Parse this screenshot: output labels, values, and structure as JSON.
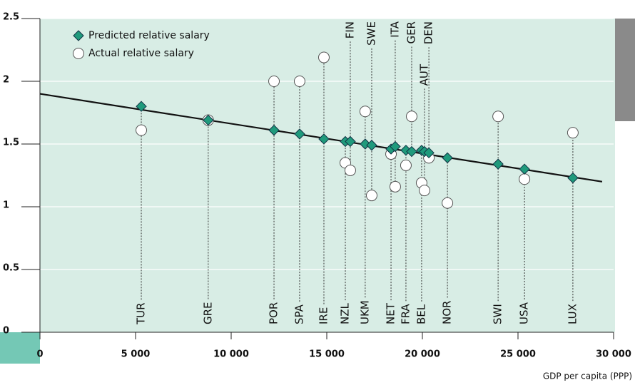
{
  "chart_data": {
    "type": "scatter",
    "categories": [
      "TUR",
      "GRE",
      "POR",
      "SPA",
      "IRE",
      "NZL",
      "FIN",
      "UKM",
      "SWE",
      "NET",
      "ITA",
      "FRA",
      "GER",
      "BEL",
      "AUT",
      "DEN",
      "NOR",
      "SWI",
      "USA",
      "LUX"
    ],
    "x": [
      5300,
      8800,
      12240,
      13580,
      14850,
      15970,
      16230,
      17010,
      17350,
      18360,
      18580,
      19140,
      19440,
      19960,
      20110,
      20340,
      21310,
      23960,
      25340,
      27870
    ],
    "series": [
      {
        "name": "Predicted relative salary",
        "color": "#1f9a7c",
        "marker": "diamond",
        "values": [
          1.8,
          1.69,
          1.61,
          1.58,
          1.54,
          1.52,
          1.52,
          1.5,
          1.49,
          1.46,
          1.48,
          1.45,
          1.44,
          1.45,
          1.44,
          1.43,
          1.39,
          1.34,
          1.3,
          1.23
        ]
      },
      {
        "name": "Actual relative salary",
        "color": "#ffffff",
        "marker": "circle",
        "values": [
          1.61,
          1.69,
          2.0,
          2.0,
          2.19,
          1.35,
          1.29,
          1.76,
          1.09,
          1.42,
          1.16,
          1.33,
          1.72,
          1.19,
          1.13,
          1.39,
          1.03,
          1.72,
          1.22,
          1.59
        ]
      }
    ],
    "trend_line": {
      "x": [
        0,
        29400
      ],
      "y": [
        1.9,
        1.2
      ]
    },
    "xlabel": "GDP per capita (PPP)",
    "xlim": [
      0,
      30000
    ],
    "ylim": [
      0,
      2.5
    ],
    "xticks": [
      0,
      {
        "value": 5000,
        "label": "5 000"
      },
      {
        "value": 10000,
        "label": "10 000"
      },
      {
        "value": 15000,
        "label": "15 000"
      },
      {
        "value": 20000,
        "label": "20 000"
      },
      {
        "value": 25000,
        "label": "25 000"
      },
      {
        "value": 30000,
        "label": "30 000"
      }
    ],
    "yticks": [
      0,
      0.5,
      1,
      1.5,
      2,
      2.5
    ],
    "grid": true
  }
}
